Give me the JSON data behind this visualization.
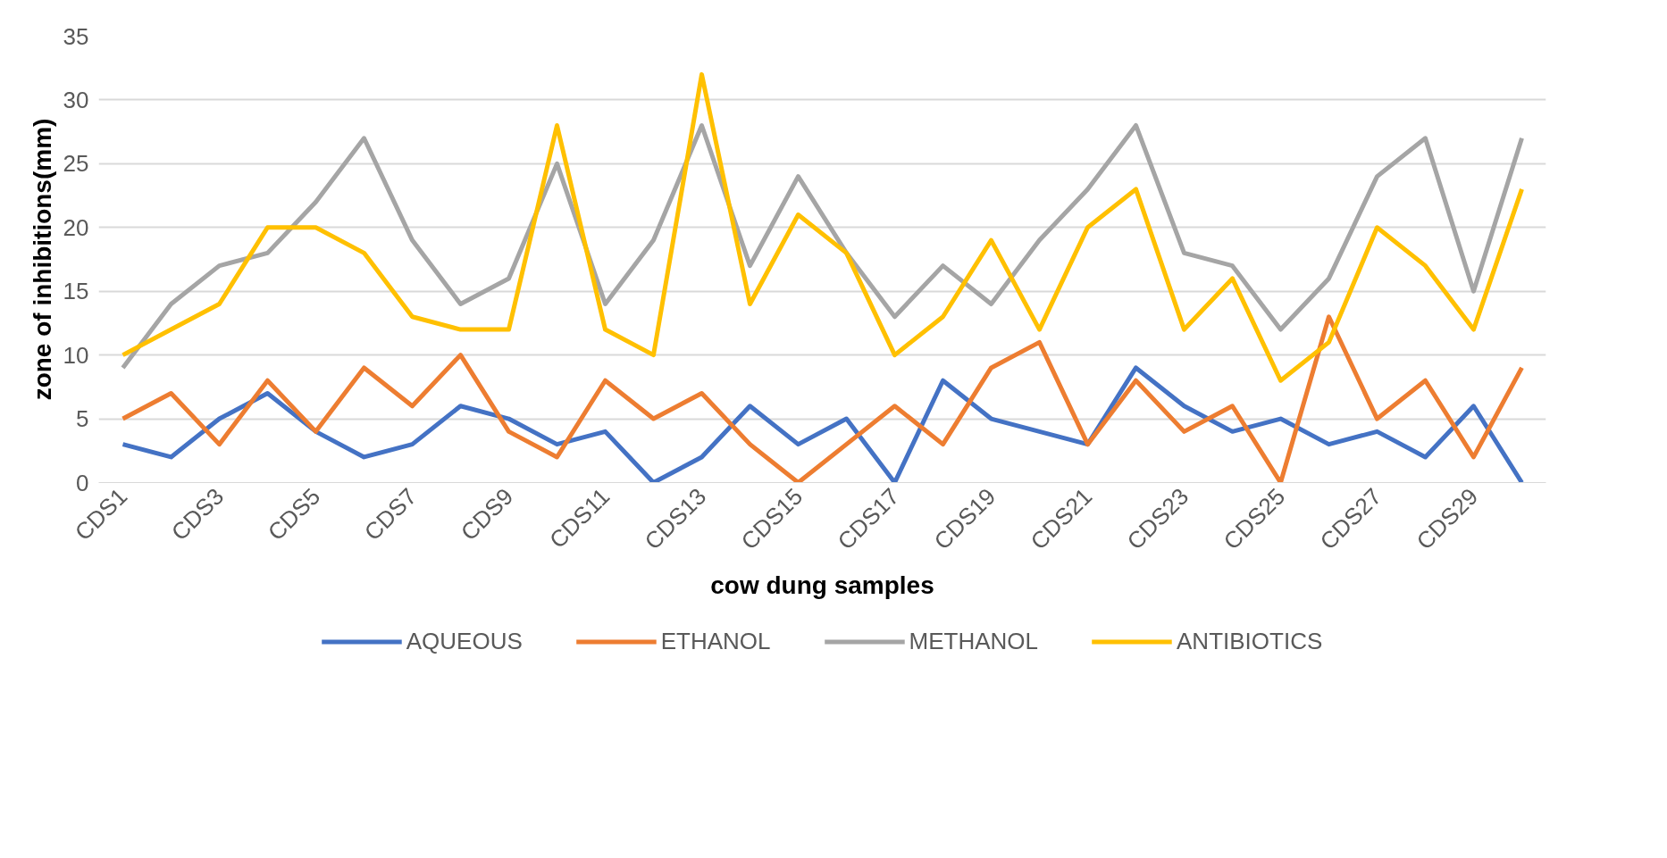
{
  "chart_data": {
    "type": "line",
    "xlabel": "cow dung samples",
    "ylabel": "zone of inhibitions(mm)",
    "categories": [
      "CDS1",
      null,
      "CDS3",
      null,
      "CDS5",
      null,
      "CDS7",
      null,
      "CDS9",
      null,
      "CDS11",
      null,
      "CDS13",
      null,
      "CDS15",
      null,
      "CDS17",
      null,
      "CDS19",
      null,
      "CDS21",
      null,
      "CDS23",
      null,
      "CDS25",
      null,
      "CDS27",
      null,
      "CDS29",
      null
    ],
    "series": [
      {
        "name": "AQUEOUS",
        "color": "#4472c4",
        "values": [
          3,
          2,
          5,
          7,
          4,
          2,
          3,
          6,
          5,
          3,
          4,
          0,
          2,
          6,
          3,
          5,
          0,
          8,
          5,
          4,
          3,
          9,
          6,
          4,
          5,
          3,
          4,
          2,
          6,
          0
        ]
      },
      {
        "name": "ETHANOL",
        "color": "#ed7d31",
        "values": [
          5,
          7,
          3,
          8,
          4,
          9,
          6,
          10,
          4,
          2,
          8,
          5,
          7,
          3,
          0,
          3,
          6,
          3,
          9,
          11,
          3,
          8,
          4,
          6,
          0,
          13,
          5,
          8,
          2,
          9
        ]
      },
      {
        "name": "METHANOL",
        "color": "#a5a5a5",
        "values": [
          9,
          14,
          17,
          18,
          22,
          27,
          19,
          14,
          16,
          25,
          14,
          19,
          28,
          17,
          24,
          18,
          13,
          17,
          14,
          19,
          23,
          28,
          18,
          17,
          12,
          16,
          24,
          27,
          15,
          27
        ]
      },
      {
        "name": "ANTIBIOTICS",
        "color": "#ffc000",
        "values": [
          10,
          12,
          14,
          20,
          20,
          18,
          13,
          12,
          12,
          28,
          12,
          10,
          32,
          14,
          21,
          18,
          10,
          13,
          19,
          12,
          20,
          23,
          12,
          16,
          8,
          11,
          20,
          17,
          12,
          23
        ]
      }
    ],
    "ylim": [
      0,
      35
    ],
    "yticks": [
      0,
      5,
      10,
      15,
      20,
      25,
      30,
      35
    ],
    "grid": "y",
    "legend": "bottom",
    "marker": "none",
    "line_style": "solid"
  }
}
